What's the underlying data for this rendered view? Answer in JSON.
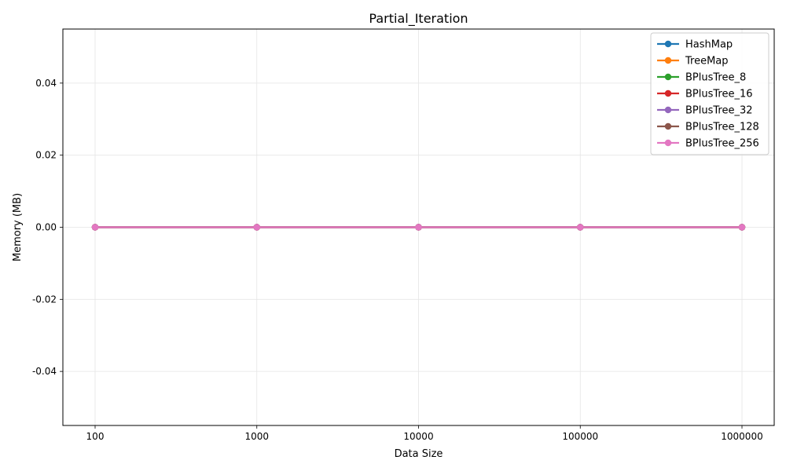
{
  "chart_data": {
    "type": "line",
    "title": "Partial_Iteration",
    "xlabel": "Data Size",
    "ylabel": "Memory (MB)",
    "x": [
      "100",
      "1000",
      "10000",
      "100000",
      "1000000"
    ],
    "ylim": [
      -0.055,
      0.055
    ],
    "yticks": [
      "0.04",
      "0.02",
      "0.00",
      "-0.02",
      "-0.04"
    ],
    "ytick_values": [
      0.04,
      0.02,
      0.0,
      -0.02,
      -0.04
    ],
    "grid": true,
    "legend_position": "top-right",
    "series": [
      {
        "name": "HashMap",
        "color": "#1f77b4",
        "values": [
          0,
          0,
          0,
          0,
          0
        ]
      },
      {
        "name": "TreeMap",
        "color": "#ff7f0e",
        "values": [
          0,
          0,
          0,
          0,
          0
        ]
      },
      {
        "name": "BPlusTree_8",
        "color": "#2ca02c",
        "values": [
          0,
          0,
          0,
          0,
          0
        ]
      },
      {
        "name": "BPlusTree_16",
        "color": "#d62728",
        "values": [
          0,
          0,
          0,
          0,
          0
        ]
      },
      {
        "name": "BPlusTree_32",
        "color": "#9467bd",
        "values": [
          0,
          0,
          0,
          0,
          0
        ]
      },
      {
        "name": "BPlusTree_128",
        "color": "#8c564b",
        "values": [
          0,
          0,
          0,
          0,
          0
        ]
      },
      {
        "name": "BPlusTree_256",
        "color": "#e377c2",
        "values": [
          0,
          0,
          0,
          0,
          0
        ]
      }
    ]
  }
}
